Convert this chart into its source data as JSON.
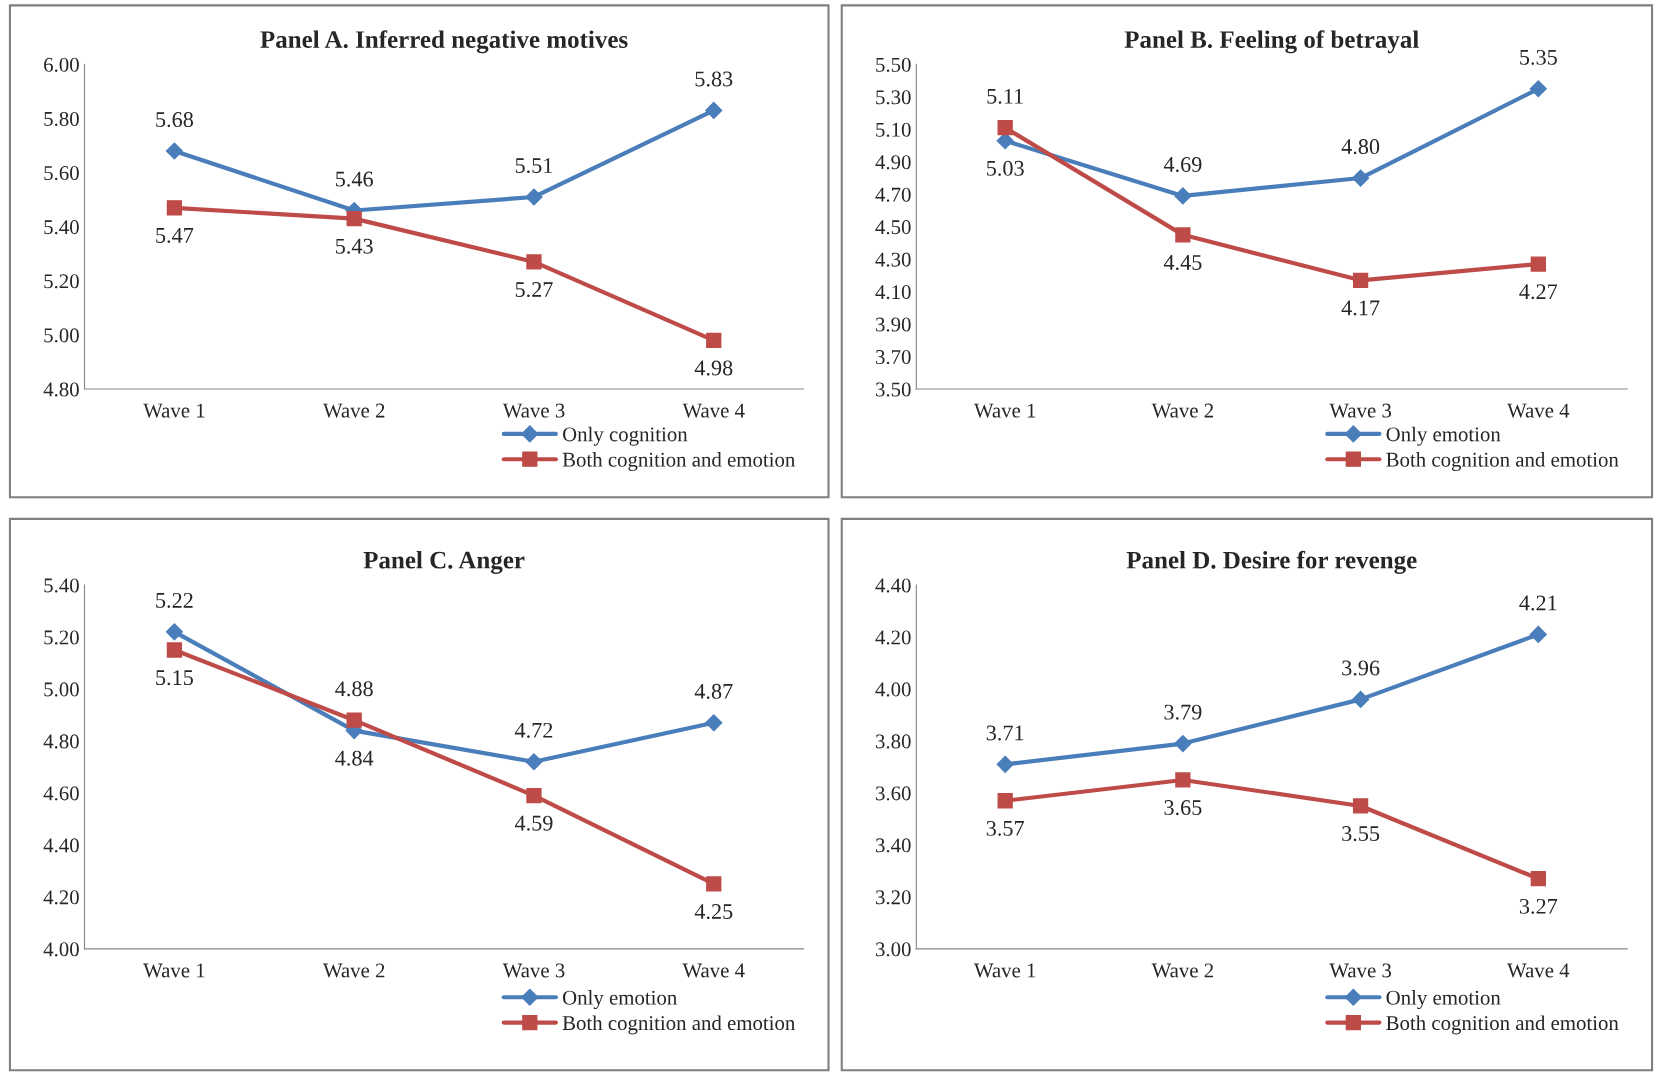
{
  "chart_data": [
    {
      "type": "line",
      "title": "Panel A. Inferred negative motives",
      "categories": [
        "Wave 1",
        "Wave 2",
        "Wave 3",
        "Wave 4"
      ],
      "series": [
        {
          "name": "Only cognition",
          "color": "#4a7ebb",
          "marker": "diamond",
          "values": [
            5.68,
            5.46,
            5.51,
            5.83
          ],
          "value_labels": [
            "5.68",
            "5.46",
            "5.51",
            "5.83"
          ]
        },
        {
          "name": "Both cognition and emotion",
          "color": "#be4b48",
          "marker": "square",
          "values": [
            5.47,
            5.43,
            5.27,
            4.98
          ],
          "value_labels": [
            "5.47",
            "5.43",
            "5.27",
            "4.98"
          ]
        }
      ],
      "ylim": [
        4.8,
        6.0
      ],
      "yticks": [
        {
          "value": 4.8,
          "label": "4.80"
        },
        {
          "value": 5.0,
          "label": "5.00"
        },
        {
          "value": 5.2,
          "label": "5.20"
        },
        {
          "value": 5.4,
          "label": "5.40"
        },
        {
          "value": 5.6,
          "label": "5.60"
        },
        {
          "value": 5.8,
          "label": "5.80"
        },
        {
          "value": 6.0,
          "label": "6.00"
        }
      ],
      "grid": false,
      "legend": "bottom right",
      "line_style": "solid"
    },
    {
      "type": "line",
      "title": "Panel B. Feeling of betrayal",
      "categories": [
        "Wave 1",
        "Wave 2",
        "Wave 3",
        "Wave 4"
      ],
      "series": [
        {
          "name": "Only emotion",
          "color": "#4a7ebb",
          "marker": "diamond",
          "values": [
            5.03,
            4.69,
            4.8,
            5.35
          ],
          "value_labels": [
            "5.03",
            "4.69",
            "4.80",
            "5.35"
          ]
        },
        {
          "name": "Both cognition and emotion",
          "color": "#be4b48",
          "marker": "square",
          "values": [
            5.11,
            4.45,
            4.17,
            4.27
          ],
          "value_labels": [
            "5.11",
            "4.45",
            "4.17",
            "4.27"
          ]
        }
      ],
      "ylim": [
        3.5,
        5.5
      ],
      "yticks": [
        {
          "value": 3.5,
          "label": "3.50"
        },
        {
          "value": 3.7,
          "label": "3.70"
        },
        {
          "value": 3.9,
          "label": "3.90"
        },
        {
          "value": 4.1,
          "label": "4.10"
        },
        {
          "value": 4.3,
          "label": "4.30"
        },
        {
          "value": 4.5,
          "label": "4.50"
        },
        {
          "value": 4.7,
          "label": "4.70"
        },
        {
          "value": 4.9,
          "label": "4.90"
        },
        {
          "value": 5.1,
          "label": "5.10"
        },
        {
          "value": 5.3,
          "label": "5.30"
        },
        {
          "value": 5.5,
          "label": "5.50"
        }
      ],
      "grid": false,
      "legend": "bottom right",
      "line_style": "solid"
    },
    {
      "type": "line",
      "title": "Panel C. Anger",
      "categories": [
        "Wave 1",
        "Wave 2",
        "Wave 3",
        "Wave 4"
      ],
      "series": [
        {
          "name": "Only emotion",
          "color": "#4a7ebb",
          "marker": "diamond",
          "values": [
            5.22,
            4.84,
            4.72,
            4.87
          ],
          "value_labels": [
            "5.22",
            "4.84",
            "4.72",
            "4.87"
          ]
        },
        {
          "name": "Both cognition and emotion",
          "color": "#be4b48",
          "marker": "square",
          "values": [
            5.15,
            4.88,
            4.59,
            4.25
          ],
          "value_labels": [
            "5.15",
            "4.88",
            "4.59",
            "4.25"
          ]
        }
      ],
      "ylim": [
        4.0,
        5.4
      ],
      "yticks": [
        {
          "value": 4.0,
          "label": "4.00"
        },
        {
          "value": 4.2,
          "label": "4.20"
        },
        {
          "value": 4.4,
          "label": "4.40"
        },
        {
          "value": 4.6,
          "label": "4.60"
        },
        {
          "value": 4.8,
          "label": "4.80"
        },
        {
          "value": 5.0,
          "label": "5.00"
        },
        {
          "value": 5.2,
          "label": "5.20"
        },
        {
          "value": 5.4,
          "label": "5.40"
        }
      ],
      "grid": false,
      "legend": "bottom right",
      "line_style": "solid"
    },
    {
      "type": "line",
      "title": "Panel D. Desire for revenge",
      "categories": [
        "Wave 1",
        "Wave 2",
        "Wave 3",
        "Wave 4"
      ],
      "series": [
        {
          "name": "Only emotion",
          "color": "#4a7ebb",
          "marker": "diamond",
          "values": [
            3.71,
            3.79,
            3.96,
            4.21
          ],
          "value_labels": [
            "3.71",
            "3.79",
            "3.96",
            "4.21"
          ]
        },
        {
          "name": "Both cognition and emotion",
          "color": "#be4b48",
          "marker": "square",
          "values": [
            3.57,
            3.65,
            3.55,
            3.27
          ],
          "value_labels": [
            "3.57",
            "3.65",
            "3.55",
            "3.27"
          ]
        }
      ],
      "ylim": [
        3.0,
        4.4
      ],
      "yticks": [
        {
          "value": 3.0,
          "label": "3.00"
        },
        {
          "value": 3.2,
          "label": "3.20"
        },
        {
          "value": 3.4,
          "label": "3.40"
        },
        {
          "value": 3.6,
          "label": "3.60"
        },
        {
          "value": 3.8,
          "label": "3.80"
        },
        {
          "value": 4.0,
          "label": "4.00"
        },
        {
          "value": 4.2,
          "label": "4.20"
        },
        {
          "value": 4.4,
          "label": "4.40"
        }
      ],
      "grid": false,
      "legend": "bottom right",
      "line_style": "solid"
    }
  ]
}
